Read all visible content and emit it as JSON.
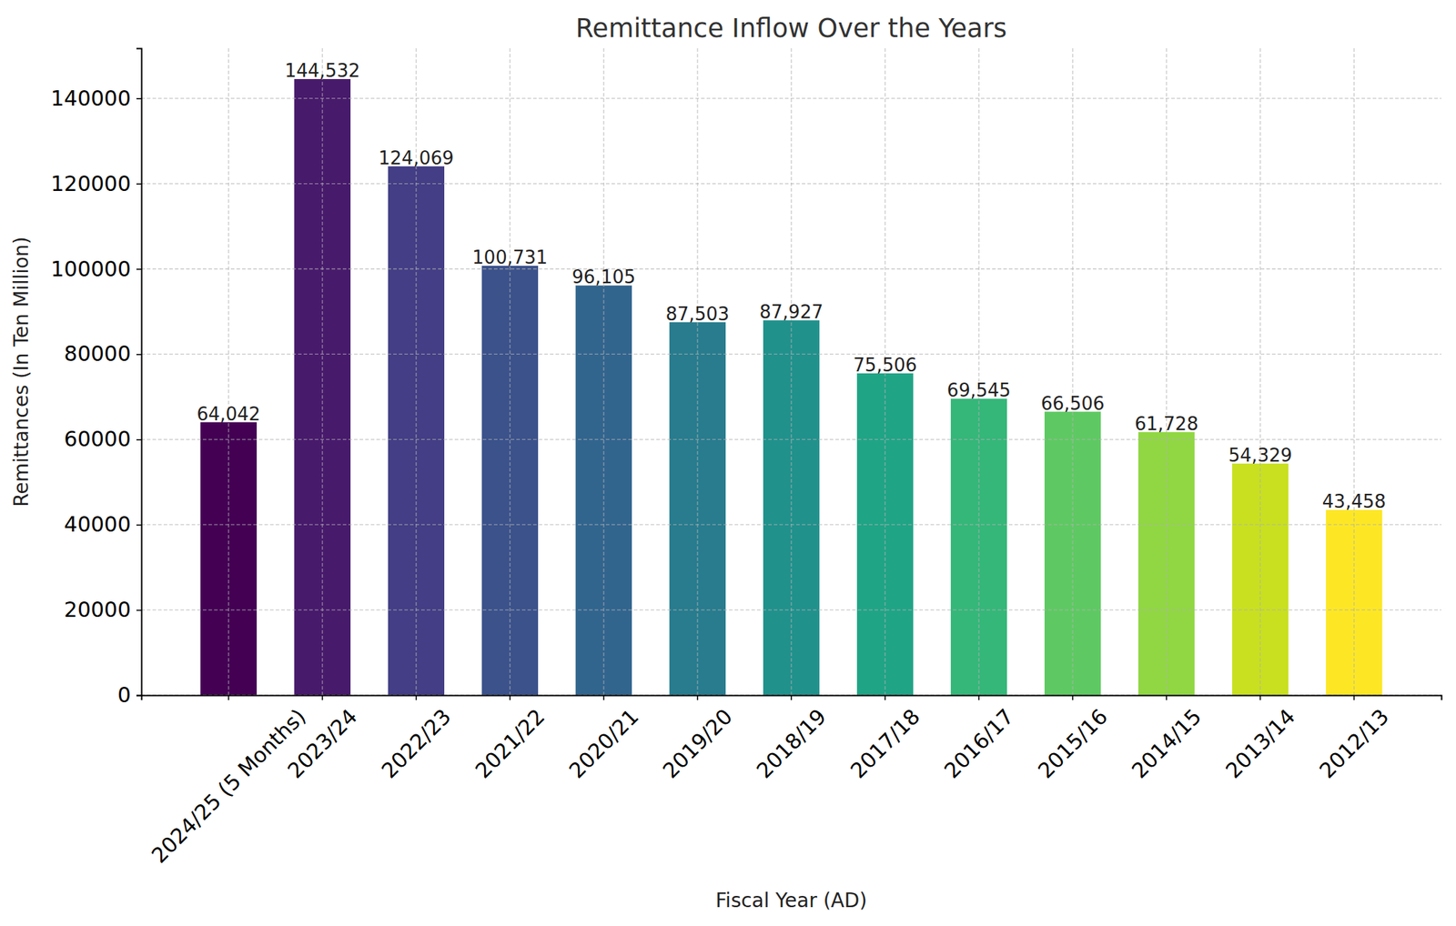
{
  "chart_data": {
    "type": "bar",
    "title": "Remittance Inflow Over the Years",
    "x_label": "Fiscal Year (AD)",
    "y_label": "Remittances (In Ten Million)",
    "categories": [
      "2024/25 (5 Months)",
      "2023/24",
      "2022/23",
      "2021/22",
      "2020/21",
      "2019/20",
      "2018/19",
      "2017/18",
      "2016/17",
      "2015/16",
      "2014/15",
      "2013/14",
      "2012/13"
    ],
    "values": [
      64042,
      144532,
      124069,
      100731,
      96105,
      87503,
      87927,
      75506,
      69545,
      66506,
      61728,
      54329,
      43458
    ],
    "value_labels": [
      "64,042",
      "144,532",
      "124,069",
      "100,731",
      "96,105",
      "87,503",
      "87,927",
      "75,506",
      "69,545",
      "66,506",
      "61,728",
      "54,329",
      "43,458"
    ],
    "colors": [
      "#440154",
      "#481a6c",
      "#433e85",
      "#3b528b",
      "#32658e",
      "#287c8e",
      "#21918c",
      "#20a486",
      "#35b779",
      "#5ec962",
      "#90d743",
      "#c8e020",
      "#fde725"
    ],
    "ylim": [
      0,
      151759
    ],
    "yticks": [
      0,
      20000,
      40000,
      60000,
      80000,
      100000,
      120000,
      140000
    ],
    "grid": true,
    "data_labels": true
  }
}
